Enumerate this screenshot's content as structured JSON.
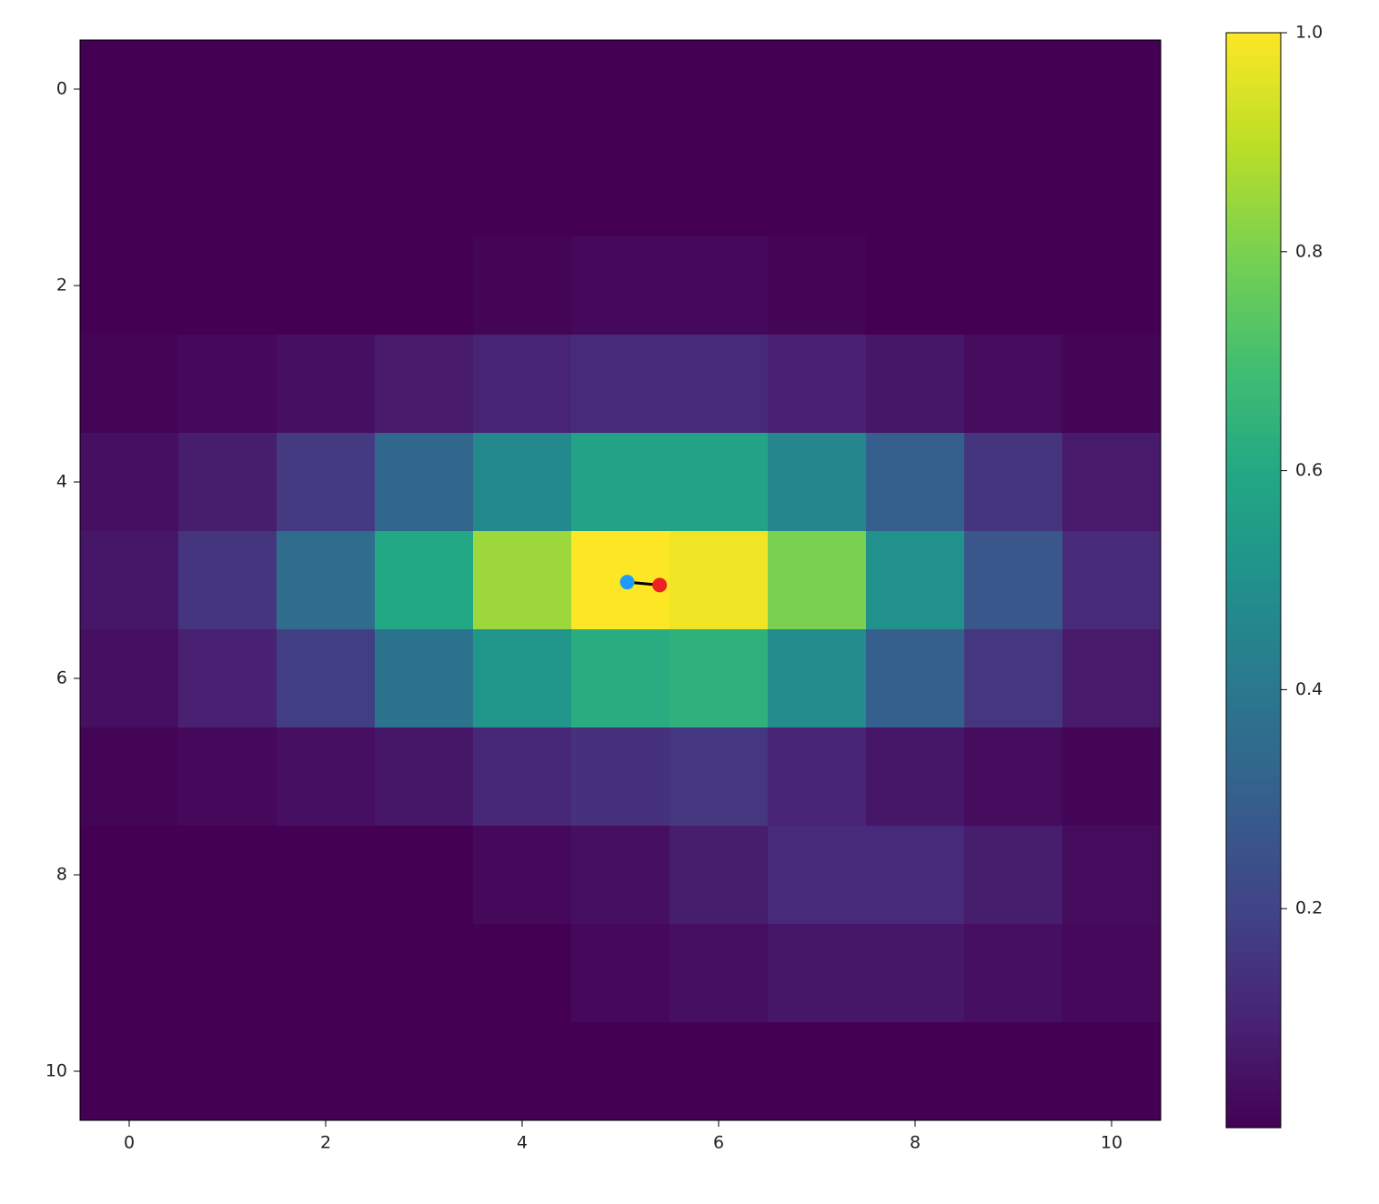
{
  "chart_data": {
    "type": "heatmap",
    "colormap": "viridis",
    "z": [
      [
        0,
        0,
        0,
        0,
        0,
        0,
        0,
        0,
        0,
        0,
        0
      ],
      [
        0,
        0,
        0,
        0,
        0,
        0,
        0,
        0,
        0,
        0,
        0
      ],
      [
        0,
        0,
        0,
        0,
        0.01,
        0.02,
        0.02,
        0.01,
        0,
        0,
        0
      ],
      [
        0.01,
        0.02,
        0.04,
        0.07,
        0.1,
        0.12,
        0.12,
        0.09,
        0.06,
        0.03,
        0.01
      ],
      [
        0.04,
        0.08,
        0.17,
        0.33,
        0.47,
        0.58,
        0.58,
        0.46,
        0.3,
        0.15,
        0.07
      ],
      [
        0.06,
        0.15,
        0.35,
        0.6,
        0.85,
        1.0,
        0.98,
        0.8,
        0.5,
        0.27,
        0.12
      ],
      [
        0.04,
        0.09,
        0.18,
        0.38,
        0.52,
        0.62,
        0.64,
        0.48,
        0.3,
        0.16,
        0.07
      ],
      [
        0.01,
        0.02,
        0.04,
        0.06,
        0.11,
        0.14,
        0.16,
        0.1,
        0.06,
        0.03,
        0.01
      ],
      [
        0,
        0,
        0,
        0,
        0.02,
        0.04,
        0.08,
        0.12,
        0.12,
        0.08,
        0.03
      ],
      [
        0,
        0,
        0,
        0,
        0,
        0.02,
        0.04,
        0.06,
        0.06,
        0.04,
        0.02
      ],
      [
        0,
        0,
        0,
        0,
        0,
        0,
        0,
        0,
        0,
        0,
        0
      ]
    ],
    "xlim": [
      -0.5,
      10.5
    ],
    "ylim": [
      10.5,
      -0.5
    ],
    "xticks": [
      0,
      2,
      4,
      6,
      8,
      10
    ],
    "yticks": [
      0,
      2,
      4,
      6,
      8,
      10
    ],
    "clim": [
      0,
      1
    ],
    "cticks": [
      0.2,
      0.4,
      0.6,
      0.8,
      {
        "value": 1,
        "label": "1.0"
      }
    ],
    "markers": [
      {
        "x": 5.07,
        "y": 5.02,
        "color": "#1e9bff"
      },
      {
        "x": 5.4,
        "y": 5.05,
        "color": "#ee2222"
      }
    ],
    "connector_color": "#000000"
  }
}
